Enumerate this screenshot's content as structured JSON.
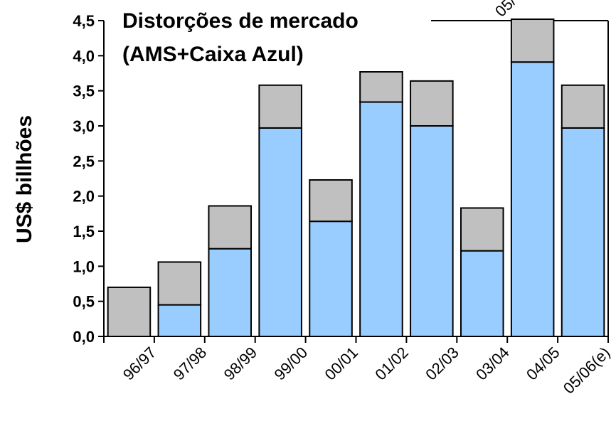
{
  "chart_data": {
    "type": "bar",
    "stacked": true,
    "title_line1": "Distorções de mercado",
    "title_line2": "(AMS+Caixa Azul)",
    "ylabel": "US$ billhões",
    "xlabel": "",
    "ylim": [
      0,
      4.5
    ],
    "yticks": [
      "0,0",
      "0,5",
      "1,0",
      "1,5",
      "2,0",
      "2,5",
      "3,0",
      "3,5",
      "4,0",
      "4,5"
    ],
    "categories": [
      "96/97",
      "97/98",
      "98/99",
      "99/00",
      "00/01",
      "01/02",
      "02/03",
      "03/04",
      "04/05",
      "05/06(e)"
    ],
    "series": [
      {
        "color": "#99ccff",
        "values": [
          0,
          0.45,
          1.25,
          2.97,
          1.64,
          3.34,
          3.0,
          1.22,
          3.91,
          2.97
        ]
      },
      {
        "color": "#c0c0c0",
        "values": [
          0.7,
          0.61,
          0.61,
          0.61,
          0.59,
          0.43,
          0.64,
          0.61,
          0.61,
          0.61
        ]
      }
    ],
    "grid": false,
    "legend": "none",
    "overflow_label": "05/"
  }
}
